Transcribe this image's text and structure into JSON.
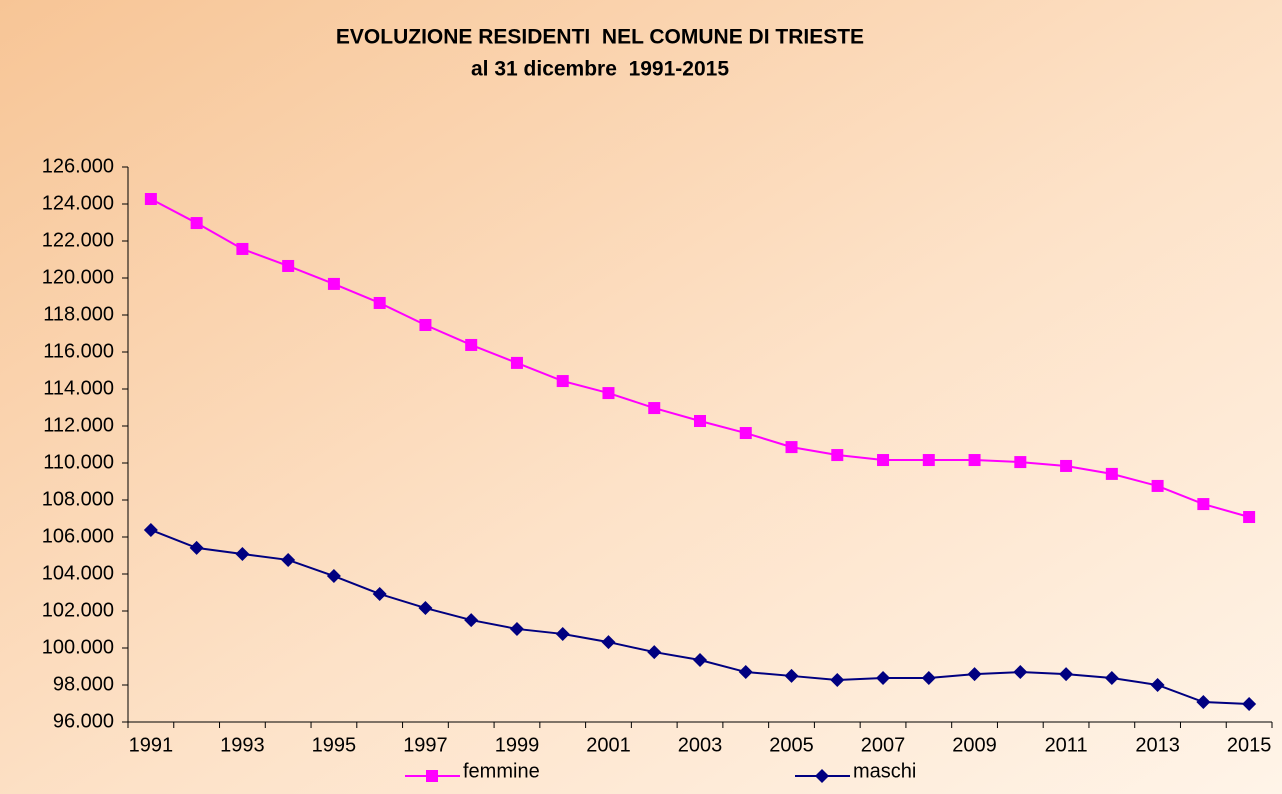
{
  "chart_data": {
    "type": "line",
    "title": "EVOLUZIONE RESIDENTI  NEL COMUNE DI TRIESTE",
    "subtitle": "al 31 dicembre  1991-2015",
    "categories": [
      "1991",
      null,
      "1993",
      null,
      "1995",
      null,
      "1997",
      null,
      "1999",
      null,
      "2001",
      null,
      "2003",
      null,
      "2005",
      null,
      "2007",
      null,
      "2009",
      null,
      "2011",
      null,
      "2013",
      null,
      "2015"
    ],
    "series": [
      {
        "name": "femmine",
        "color": "#ff00ff",
        "marker": "square",
        "values": [
          124270,
          122970,
          121570,
          120650,
          119680,
          118650,
          117460,
          116380,
          115410,
          114430,
          113780,
          112970,
          112270,
          111620,
          110860,
          110430,
          110160,
          110160,
          110160,
          110050,
          109840,
          109410,
          108760,
          107780,
          107080
        ]
      },
      {
        "name": "maschi",
        "color": "#000080",
        "marker": "diamond",
        "values": [
          106380,
          105410,
          105080,
          104760,
          103890,
          102920,
          102160,
          101510,
          101030,
          100760,
          100320,
          99780,
          99350,
          98700,
          98490,
          98270,
          98380,
          98380,
          98590,
          98700,
          98590,
          98380,
          98000,
          97080,
          96970
        ]
      }
    ],
    "ylim": [
      96000,
      126000
    ],
    "yticks": [
      {
        "value": 96000,
        "label": "96.000"
      },
      {
        "value": 98000,
        "label": "98.000"
      },
      {
        "value": 100000,
        "label": "100.000"
      },
      {
        "value": 102000,
        "label": "102.000"
      },
      {
        "value": 104000,
        "label": "104.000"
      },
      {
        "value": 106000,
        "label": "106.000"
      },
      {
        "value": 108000,
        "label": "108.000"
      },
      {
        "value": 110000,
        "label": "110.000"
      },
      {
        "value": 112000,
        "label": "112.000"
      },
      {
        "value": 114000,
        "label": "114.000"
      },
      {
        "value": 116000,
        "label": "116.000"
      },
      {
        "value": 118000,
        "label": "118.000"
      },
      {
        "value": 120000,
        "label": "120.000"
      },
      {
        "value": 122000,
        "label": "122.000"
      },
      {
        "value": 124000,
        "label": "124.000"
      },
      {
        "value": 126000,
        "label": "126.000"
      }
    ],
    "grid": false,
    "legend": "bottom"
  }
}
